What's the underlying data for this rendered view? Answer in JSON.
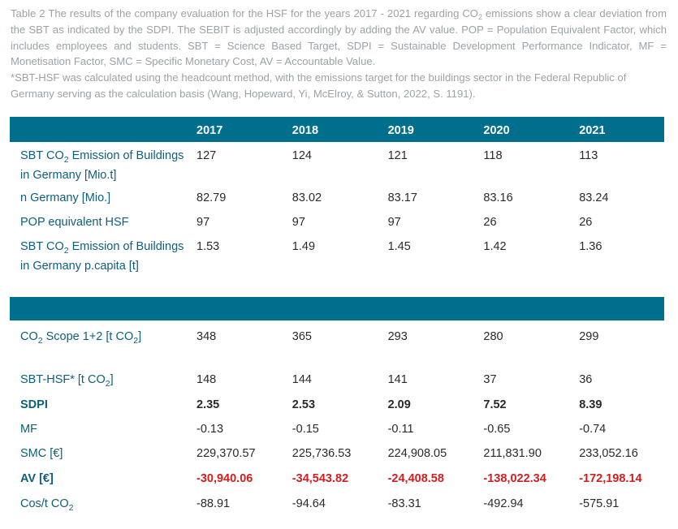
{
  "caption": {
    "p1_a": "Table 2 The results of the company evaluation for the HSF for the years 2017 - 2021 regarding CO",
    "p1_sub": "2",
    "p1_b": " emissions show a clear deviation from the SBT as indicated by the SDPI. The SEBIT is adjusted accordingly by adding the AV value. POP = Population Equivalent Factor, which includes employees and students. SBT = Science Based Target, SDPI = Sustainable Development Performance Indicator, MF = Monetisation Factor, SMC = Specific Monetary Cost, AV = Accountable Value.",
    "p2": "*SBT-HSF was calculated using the headcount method, with the emissions target for the buildings sector in the Federal Republic of Germany serving as the calculation basis (Wang, Hopeward, Yi, McElroy, & Sutton, 2022, S. 1191)."
  },
  "table": {
    "years": [
      "2017",
      "2018",
      "2019",
      "2020",
      "2021"
    ],
    "rows": {
      "sbt_co2_buildings": {
        "label_a": "SBT CO",
        "label_sub": "2",
        "label_b": " Emission of Buildings in Germany [Mio.t]",
        "values": [
          "127",
          "124",
          "121",
          "118",
          "113"
        ]
      },
      "n_germany": {
        "label": "n Germany [Mio.]",
        "values": [
          "82.79",
          "83.02",
          "83.17",
          "83.16",
          "83.24"
        ]
      },
      "pop_equivalent": {
        "label": "POP equivalent HSF",
        "values": [
          "97",
          "97",
          "97",
          "26",
          "26"
        ]
      },
      "sbt_co2_per_capita": {
        "label_a": "SBT CO",
        "label_sub": "2",
        "label_b": " Emission of Buildings in Germany p.capita [t]",
        "values": [
          "1.53",
          "1.49",
          "1.45",
          "1.42",
          "1.36"
        ]
      },
      "co2_scope": {
        "label_a": "CO",
        "label_sub": "2",
        "label_b": " Scope 1+2 [t CO",
        "label_sub2": "2",
        "label_c": "]",
        "values": [
          "348",
          "365",
          "293",
          "280",
          "299"
        ]
      },
      "sbt_hsf": {
        "label_a": "SBT-HSF* [t CO",
        "label_sub": "2",
        "label_b": "]",
        "values": [
          "148",
          "144",
          "141",
          "37",
          "36"
        ]
      },
      "sdpi": {
        "label": "SDPI",
        "values": [
          "2.35",
          "2.53",
          "2.09",
          "7.52",
          "8.39"
        ]
      },
      "mf": {
        "label": "MF",
        "values": [
          "-0.13",
          "-0.15",
          "-0.11",
          "-0.65",
          "-0.74"
        ]
      },
      "smc": {
        "label": "SMC [€]",
        "values": [
          "229,370.57",
          "225,736.53",
          "224,908.05",
          "211,831.90",
          "233,052.16"
        ]
      },
      "av": {
        "label": "AV [€]",
        "values": [
          "-30,940.06",
          "-34,543.82",
          "-24,408.58",
          "-138,022.34",
          "-172,198.14"
        ]
      },
      "cost_per_t": {
        "label_a": "Cos/t CO",
        "label_sub": "2",
        "values": [
          "-88.91",
          "-94.64",
          "-83.31",
          "-492.94",
          "-575.91"
        ]
      }
    }
  },
  "colors": {
    "header_bg": "#006f8e",
    "label_text": "#0d5f7a",
    "negative_emphasis": "#d21e1e",
    "caption_text": "#9aa3a8"
  }
}
